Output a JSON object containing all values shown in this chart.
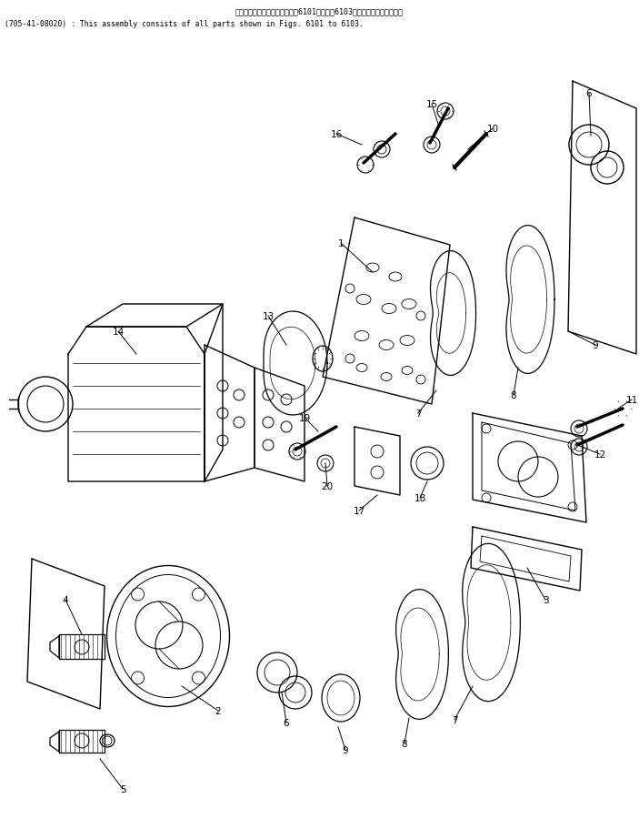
{
  "title_jp": "このアセンブリの構成部品は第6101図から第6103図の部品まで含みます。",
  "title_en": "(705-41-08020) : This assembly consists of all parts shown in Figs. 6101 to 6103.",
  "bg_color": "#ffffff",
  "line_color": "#000000",
  "text_color": "#000000",
  "fig_width": 7.03,
  "fig_height": 9.12,
  "dpi": 100
}
